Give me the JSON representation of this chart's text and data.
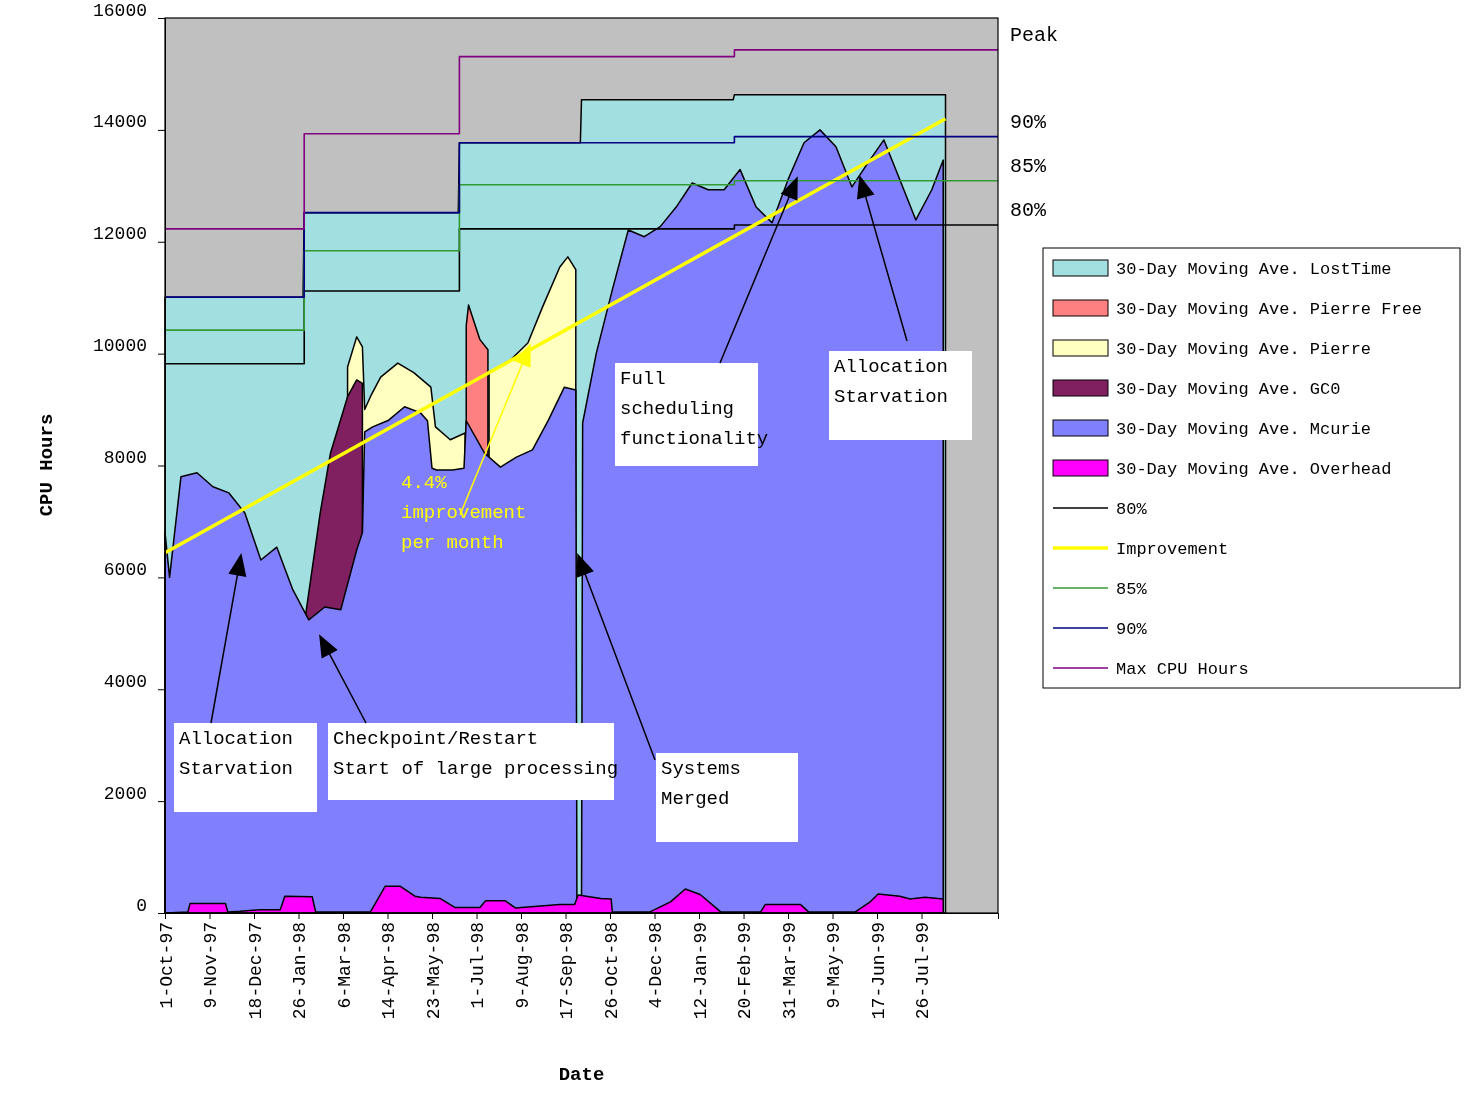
{
  "chart_data": {
    "type": "area",
    "xlabel": "Date",
    "ylabel": "CPU Hours",
    "xlim": [
      "1997-10-01",
      "1999-10-01"
    ],
    "ylim": [
      0,
      16000
    ],
    "xticks": [
      {
        "value": "1997-10-01",
        "label": "1-Oct-97"
      },
      {
        "value": "1997-11-09",
        "label": "9-Nov-97"
      },
      {
        "value": "1997-12-18",
        "label": "18-Dec-97"
      },
      {
        "value": "1998-01-26",
        "label": "26-Jan-98"
      },
      {
        "value": "1998-03-06",
        "label": "6-Mar-98"
      },
      {
        "value": "1998-04-14",
        "label": "14-Apr-98"
      },
      {
        "value": "1998-05-23",
        "label": "23-May-98"
      },
      {
        "value": "1998-07-01",
        "label": "1-Jul-98"
      },
      {
        "value": "1998-08-09",
        "label": "9-Aug-98"
      },
      {
        "value": "1998-09-17",
        "label": "17-Sep-98"
      },
      {
        "value": "1998-10-26",
        "label": "26-Oct-98"
      },
      {
        "value": "1998-12-04",
        "label": "4-Dec-98"
      },
      {
        "value": "1999-01-12",
        "label": "12-Jan-99"
      },
      {
        "value": "1999-02-20",
        "label": "20-Feb-99"
      },
      {
        "value": "1999-03-31",
        "label": "31-Mar-99"
      },
      {
        "value": "1999-05-09",
        "label": "9-May-99"
      },
      {
        "value": "1999-06-17",
        "label": "17-Jun-99"
      },
      {
        "value": "1999-07-26",
        "label": "26-Jul-99"
      }
    ],
    "yticks": [
      0,
      2000,
      4000,
      6000,
      8000,
      10000,
      12000,
      14000,
      16000
    ],
    "legend": "right",
    "grid": false,
    "series": [
      {
        "name": "30-Day Moving Ave. LostTime",
        "color": "#a2dfe0",
        "x": [
          "1997-10-01",
          "1998-01-30",
          "1998-01-31",
          "1998-06-15",
          "1998-06-16",
          "1998-09-30",
          "1998-10-01",
          "1999-02-11",
          "1999-02-12",
          "1999-08-16"
        ],
        "values": [
          11010,
          11010,
          12520,
          12520,
          13770,
          13770,
          14540,
          14540,
          14630,
          14630
        ]
      },
      {
        "name": "30-Day Moving Ave. Pierre Free",
        "color": "#ff8080",
        "x": [
          "1998-06-22",
          "1998-06-24",
          "1998-07-04",
          "1998-07-11"
        ],
        "values": [
          10500,
          10870,
          10250,
          10070
        ]
      },
      {
        "name": "30-Day Moving Ave. Pierre",
        "color": "#ffffc0",
        "x": [
          "1998-03-10",
          "1998-03-18",
          "1998-03-23",
          "1998-03-25",
          "1998-03-30",
          "1998-04-08",
          "1998-04-23",
          "1998-05-07",
          "1998-05-22",
          "1998-05-26",
          "1998-06-08",
          "1998-06-21",
          "1998-07-01",
          "1998-07-12",
          "1998-07-31",
          "1998-08-15",
          "1998-08-28",
          "1998-09-12",
          "1998-09-19",
          "1998-09-26"
        ],
        "values": [
          9760,
          10300,
          10120,
          9000,
          9230,
          9580,
          9830,
          9660,
          9400,
          8690,
          8460,
          8580,
          null,
          9660,
          9890,
          10190,
          10840,
          11550,
          11730,
          11500
        ]
      },
      {
        "name": "30-Day Moving Ave. GC0",
        "color": "#802060",
        "x": [
          "1998-02-01",
          "1998-02-14",
          "1998-02-23",
          "1998-03-10",
          "1998-03-18",
          "1998-03-23"
        ],
        "values": [
          5300,
          7150,
          8220,
          9230,
          9530,
          9470
        ]
      },
      {
        "name": "30-Day Moving Ave. Mcurie",
        "color": "#8080ff",
        "x": [
          "1997-10-01",
          "1997-10-05",
          "1997-10-15",
          "1997-10-29",
          "1997-11-12",
          "1997-11-26",
          "1997-12-10",
          "1997-12-24",
          "1998-01-07",
          "1998-01-21",
          "1998-02-04",
          "1998-02-18",
          "1998-03-04",
          "1998-03-18",
          "1998-03-23",
          "1998-03-25",
          "1998-04-01",
          "1998-04-15",
          "1998-04-29",
          "1998-05-13",
          "1998-05-19",
          "1998-05-23",
          "1998-05-27",
          "1998-06-10",
          "1998-06-20",
          "1998-06-22",
          "1998-07-08",
          "1998-07-22",
          "1998-08-05",
          "1998-08-19",
          "1998-09-02",
          "1998-09-16",
          "1998-09-26",
          "1998-09-27",
          "1998-10-01",
          "1998-10-02",
          "1998-10-14",
          "1998-10-28",
          "1998-11-11",
          "1998-11-25",
          "1998-12-09",
          "1998-12-23",
          "1999-01-06",
          "1999-01-20",
          "1999-02-03",
          "1999-02-17",
          "1999-03-03",
          "1999-03-17",
          "1999-03-31",
          "1999-04-14",
          "1999-04-28",
          "1999-05-12",
          "1999-05-26",
          "1999-06-09",
          "1999-06-23",
          "1999-07-07",
          "1999-07-21",
          "1999-08-04",
          "1999-08-14"
        ],
        "values": [
          6800,
          6000,
          7800,
          7870,
          7620,
          7510,
          7150,
          6310,
          6540,
          5780,
          5240,
          5470,
          5420,
          6490,
          6800,
          8600,
          8690,
          8810,
          9050,
          8940,
          8800,
          7950,
          7920,
          7920,
          7950,
          8800,
          8220,
          7970,
          8150,
          8280,
          8810,
          9400,
          9350,
          0,
          0,
          8760,
          10010,
          11140,
          12210,
          12090,
          12270,
          12620,
          13050,
          12930,
          12930,
          13290,
          12620,
          12340,
          13110,
          13770,
          14000,
          13700,
          12980,
          13410,
          13820,
          13110,
          12390,
          12930,
          13460
        ]
      },
      {
        "name": "30-Day Moving Ave. Overhead",
        "color": "#ff00ff",
        "x": [
          "1997-10-01",
          "1997-10-21",
          "1997-10-23",
          "1997-11-23",
          "1997-11-25",
          "1997-12-06",
          "1997-12-23",
          "1998-01-10",
          "1998-01-14",
          "1998-02-07",
          "1998-02-10",
          "1998-03-30",
          "1998-04-07",
          "1998-04-12",
          "1998-04-25",
          "1998-05-08",
          "1998-05-13",
          "1998-05-30",
          "1998-06-12",
          "1998-07-04",
          "1998-07-09",
          "1998-07-26",
          "1998-08-04",
          "1998-09-12",
          "1998-09-25",
          "1998-09-28",
          "1998-10-18",
          "1998-10-27",
          "1998-10-28",
          "1998-11-30",
          "1998-12-18",
          "1998-12-31",
          "1999-01-13",
          "1999-01-31",
          "1999-03-07",
          "1999-03-11",
          "1999-04-11",
          "1999-04-18",
          "1999-05-29",
          "1999-06-11",
          "1999-06-18",
          "1999-07-07",
          "1999-07-16",
          "1999-07-29",
          "1999-08-14"
        ],
        "values": [
          0,
          20,
          170,
          170,
          20,
          30,
          60,
          60,
          300,
          290,
          20,
          20,
          300,
          480,
          480,
          300,
          280,
          260,
          100,
          100,
          220,
          220,
          90,
          150,
          150,
          320,
          260,
          250,
          20,
          20,
          200,
          430,
          330,
          20,
          20,
          150,
          150,
          20,
          20,
          200,
          340,
          300,
          250,
          280,
          250
        ]
      },
      {
        "name": "80%",
        "type": "step",
        "color": "#000000",
        "x": [
          "1997-10-01",
          "1998-01-31",
          "1998-06-16",
          "1999-02-12",
          "1999-10-01"
        ],
        "values": [
          9820,
          11120,
          12230,
          12300,
          12300
        ]
      },
      {
        "name": "Improvement",
        "type": "line",
        "color": "#ffff00",
        "x": [
          "1997-10-01",
          "1999-08-16"
        ],
        "values": [
          6440,
          14200
        ]
      },
      {
        "name": "85%",
        "type": "step",
        "color": "#339933",
        "x": [
          "1997-10-01",
          "1998-01-31",
          "1998-06-16",
          "1999-02-12",
          "1999-10-01"
        ],
        "values": [
          10420,
          11840,
          13020,
          13090,
          13090
        ]
      },
      {
        "name": "90%",
        "type": "step",
        "color": "#000080",
        "x": [
          "1997-10-01",
          "1998-01-31",
          "1998-06-16",
          "1999-02-12",
          "1999-10-01"
        ],
        "values": [
          11010,
          12520,
          13770,
          13880,
          13880
        ]
      },
      {
        "name": "Max CPU Hours",
        "type": "step",
        "color": "#800080",
        "x": [
          "1997-10-01",
          "1998-01-31",
          "1998-06-16",
          "1999-02-12",
          "1999-10-01"
        ],
        "values": [
          12230,
          13930,
          15310,
          15430,
          15430
        ]
      }
    ],
    "annotations": [
      "Allocation\nStarvation",
      "Checkpoint/Restart\nStart of large processing",
      "4.4%\nimprovement\nper month",
      "Systems\nMerged",
      "Full\nscheduling\nfunctionality",
      "Allocation\nStarvation",
      {
        "text": "Peak",
        "x": "1999-10-01",
        "y": 15430
      },
      {
        "text": "90%",
        "x": "1999-10-01",
        "y": 13880
      },
      {
        "text": "85%",
        "x": "1999-10-01",
        "y": 13090
      },
      {
        "text": "80%",
        "x": "1999-10-01",
        "y": 12300
      }
    ]
  }
}
